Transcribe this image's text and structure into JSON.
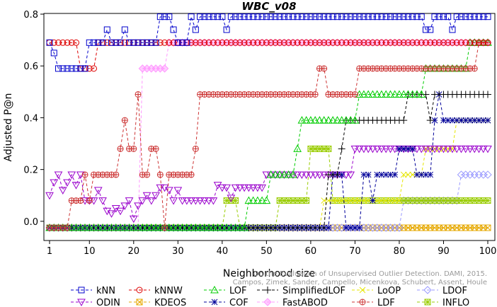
{
  "chart_data": {
    "type": "line",
    "title": "WBC_v08",
    "xlabel": "Neighborhood size",
    "ylabel": "Adjusted P@n",
    "xlim": [
      1,
      100
    ],
    "ylim": [
      -0.03,
      0.8
    ],
    "x_ticks": [
      "1",
      "10",
      "20",
      "30",
      "40",
      "50",
      "60",
      "70",
      "80",
      "90",
      "100"
    ],
    "y_ticks": [
      "0.0",
      "0.2",
      "0.4",
      "0.6",
      "0.8"
    ],
    "credit": [
      "Campos, Zimek, Sander, Campello, Micenkova, Schubert, Assent, Houle",
      "On the Evaluation of Unsupervised Outlier Detection. DAMI, 2015."
    ],
    "legend_position": "bottom",
    "grid": false,
    "series": [
      {
        "name": "kNN",
        "color": "#0000cc",
        "marker": "square",
        "segments": [
          [
            1,
            0.69
          ],
          [
            2,
            0.65
          ],
          [
            3,
            0.59
          ],
          [
            9,
            0.59
          ],
          [
            10,
            0.69
          ],
          [
            13,
            0.69
          ],
          [
            14,
            0.74
          ],
          [
            15,
            0.69
          ],
          [
            17,
            0.69
          ],
          [
            18,
            0.74
          ],
          [
            19,
            0.69
          ],
          [
            25,
            0.69
          ],
          [
            26,
            0.79
          ],
          [
            28,
            0.79
          ],
          [
            29,
            0.74
          ],
          [
            30,
            0.69
          ],
          [
            32,
            0.69
          ],
          [
            33,
            0.79
          ],
          [
            34,
            0.74
          ],
          [
            35,
            0.79
          ],
          [
            40,
            0.79
          ],
          [
            41,
            0.74
          ],
          [
            42,
            0.79
          ],
          [
            85,
            0.79
          ],
          [
            86,
            0.74
          ],
          [
            88,
            0.79
          ],
          [
            91,
            0.79
          ],
          [
            92,
            0.74
          ],
          [
            93,
            0.79
          ],
          [
            100,
            0.79
          ]
        ]
      },
      {
        "name": "kNNW",
        "color": "#dd0000",
        "marker": "circle",
        "segments": [
          [
            1,
            0.69
          ],
          [
            7,
            0.69
          ],
          [
            8,
            0.59
          ],
          [
            11,
            0.59
          ],
          [
            12,
            0.69
          ],
          [
            100,
            0.69
          ]
        ]
      },
      {
        "name": "LOF",
        "color": "#00cc00",
        "marker": "triangle-up",
        "segments": [
          [
            1,
            -0.025
          ],
          [
            45,
            -0.025
          ],
          [
            46,
            0.08
          ],
          [
            50,
            0.08
          ],
          [
            51,
            0.18
          ],
          [
            56,
            0.18
          ],
          [
            57,
            0.28
          ],
          [
            58,
            0.39
          ],
          [
            70,
            0.39
          ],
          [
            71,
            0.49
          ],
          [
            85,
            0.49
          ],
          [
            86,
            0.59
          ],
          [
            95,
            0.59
          ],
          [
            96,
            0.69
          ],
          [
            100,
            0.69
          ]
        ]
      },
      {
        "name": "SimplifiedLOF",
        "color": "#000000",
        "marker": "plus",
        "segments": [
          [
            1,
            -0.025
          ],
          [
            63,
            -0.025
          ],
          [
            64,
            0.18
          ],
          [
            66,
            0.18
          ],
          [
            67,
            0.28
          ],
          [
            68,
            0.39
          ],
          [
            81,
            0.39
          ],
          [
            82,
            0.49
          ],
          [
            86,
            0.49
          ],
          [
            87,
            0.39
          ],
          [
            88,
            0.49
          ],
          [
            100,
            0.49
          ]
        ]
      },
      {
        "name": "LoOP",
        "color": "#e6e600",
        "marker": "x",
        "segments": [
          [
            1,
            -0.025
          ],
          [
            62,
            -0.025
          ],
          [
            63,
            0.08
          ],
          [
            80,
            0.08
          ],
          [
            81,
            0.18
          ],
          [
            85,
            0.18
          ],
          [
            86,
            0.28
          ],
          [
            92,
            0.28
          ],
          [
            93,
            0.39
          ],
          [
            100,
            0.39
          ]
        ]
      },
      {
        "name": "LDOF",
        "color": "#9999ff",
        "marker": "diamond",
        "segments": [
          [
            1,
            -0.025
          ],
          [
            80,
            -0.025
          ],
          [
            81,
            0.08
          ],
          [
            93,
            0.08
          ],
          [
            94,
            0.18
          ],
          [
            100,
            0.18
          ]
        ]
      },
      {
        "name": "ODIN",
        "color": "#9900cc",
        "marker": "triangle-down",
        "segments": [
          [
            1,
            0.1
          ],
          [
            2,
            0.15
          ],
          [
            3,
            0.18
          ],
          [
            4,
            0.12
          ],
          [
            5,
            0.15
          ],
          [
            6,
            0.18
          ],
          [
            7,
            0.14
          ],
          [
            8,
            0.18
          ],
          [
            9,
            0.08
          ],
          [
            10,
            0.08
          ],
          [
            11,
            0.08
          ],
          [
            12,
            0.12
          ],
          [
            13,
            0.08
          ],
          [
            14,
            0.04
          ],
          [
            15,
            0.03
          ],
          [
            16,
            0.05
          ],
          [
            17,
            0.04
          ],
          [
            18,
            0.06
          ],
          [
            19,
            0.08
          ],
          [
            20,
            0.01
          ],
          [
            21,
            0.06
          ],
          [
            22,
            0.08
          ],
          [
            23,
            0.1
          ],
          [
            24,
            0.08
          ],
          [
            25,
            0.1
          ],
          [
            26,
            0.13
          ],
          [
            27,
            0.13
          ],
          [
            28,
            0.12
          ],
          [
            29,
            0.08
          ],
          [
            30,
            0.12
          ],
          [
            31,
            0.08
          ],
          [
            38,
            0.08
          ],
          [
            39,
            0.14
          ],
          [
            40,
            0.13
          ],
          [
            41,
            0.13
          ],
          [
            42,
            0.09
          ],
          [
            43,
            0.13
          ],
          [
            49,
            0.13
          ],
          [
            50,
            0.18
          ],
          [
            69,
            0.18
          ],
          [
            70,
            0.28
          ],
          [
            100,
            0.28
          ]
        ]
      },
      {
        "name": "KDEOS",
        "color": "#e6a800",
        "marker": "square-x",
        "segments": [
          [
            1,
            -0.025
          ],
          [
            100,
            -0.025
          ]
        ]
      },
      {
        "name": "COF",
        "color": "#000099",
        "marker": "asterisk",
        "segments": [
          [
            1,
            -0.025
          ],
          [
            64,
            -0.025
          ],
          [
            65,
            0.18
          ],
          [
            67,
            0.18
          ],
          [
            68,
            -0.025
          ],
          [
            71,
            -0.025
          ],
          [
            72,
            0.18
          ],
          [
            73,
            0.18
          ],
          [
            74,
            0.08
          ],
          [
            75,
            0.18
          ],
          [
            79,
            0.18
          ],
          [
            80,
            0.28
          ],
          [
            83,
            0.28
          ],
          [
            84,
            0.18
          ],
          [
            87,
            0.18
          ],
          [
            88,
            0.39
          ],
          [
            89,
            0.49
          ],
          [
            90,
            0.39
          ],
          [
            100,
            0.39
          ]
        ]
      },
      {
        "name": "FastABOD",
        "color": "#ff99ff",
        "marker": "diamond-filled",
        "segments": [
          [
            1,
            -0.025
          ],
          [
            21,
            -0.025
          ],
          [
            22,
            0.59
          ],
          [
            27,
            0.59
          ],
          [
            28,
            0.69
          ],
          [
            100,
            0.69
          ]
        ]
      },
      {
        "name": "LDF",
        "color": "#cc3333",
        "marker": "circle-plus",
        "segments": [
          [
            1,
            -0.025
          ],
          [
            5,
            -0.025
          ],
          [
            6,
            0.08
          ],
          [
            8,
            0.08
          ],
          [
            9,
            0.18
          ],
          [
            10,
            0.08
          ],
          [
            11,
            0.18
          ],
          [
            16,
            0.18
          ],
          [
            17,
            0.28
          ],
          [
            18,
            0.39
          ],
          [
            19,
            0.28
          ],
          [
            20,
            0.28
          ],
          [
            21,
            0.49
          ],
          [
            22,
            0.18
          ],
          [
            23,
            0.18
          ],
          [
            24,
            0.28
          ],
          [
            25,
            0.28
          ],
          [
            26,
            0.18
          ],
          [
            27,
            -0.025
          ],
          [
            28,
            0.18
          ],
          [
            33,
            0.18
          ],
          [
            34,
            0.28
          ],
          [
            35,
            0.49
          ],
          [
            61,
            0.49
          ],
          [
            62,
            0.59
          ],
          [
            63,
            0.59
          ],
          [
            64,
            0.49
          ],
          [
            70,
            0.49
          ],
          [
            71,
            0.59
          ],
          [
            97,
            0.59
          ],
          [
            98,
            0.69
          ],
          [
            100,
            0.69
          ]
        ]
      },
      {
        "name": "INFLO",
        "color": "#99cc00",
        "marker": "square-cross",
        "segments": [
          [
            1,
            -0.025
          ],
          [
            40,
            -0.025
          ],
          [
            41,
            0.08
          ],
          [
            43,
            0.08
          ],
          [
            44,
            -0.025
          ],
          [
            52,
            -0.025
          ],
          [
            53,
            0.08
          ],
          [
            59,
            0.08
          ],
          [
            60,
            0.28
          ],
          [
            64,
            0.28
          ],
          [
            65,
            0.08
          ],
          [
            100,
            0.08
          ]
        ]
      }
    ]
  }
}
